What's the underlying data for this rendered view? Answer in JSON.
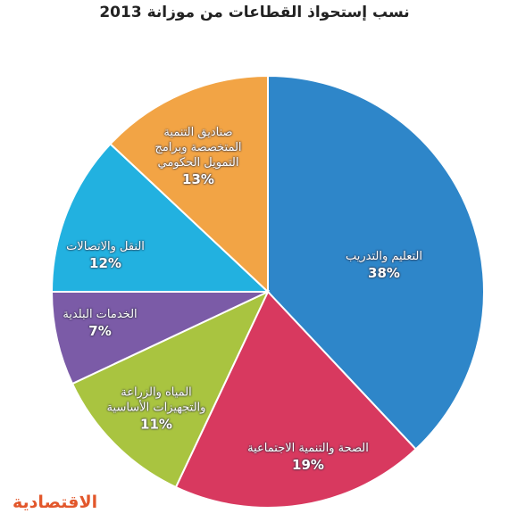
{
  "chart_data": {
    "type": "pie",
    "title": "نسب إستحواذ القطاعات من موزانة 2013",
    "categories": [
      "التعليم والتدريب",
      "الصحة والتنمية الاجتماعية",
      "المياه والزراعة\nوالتجهيزات الأساسية",
      "الخدمات البلدية",
      "النقل والاتصالات",
      "صناديق التنمية\nالمتخصصة وبرامج\nالتمويل الحكومي"
    ],
    "values": [
      38,
      19,
      11,
      7,
      12,
      13
    ],
    "value_labels": [
      "38%",
      "19%",
      "11%",
      "7%",
      "12%",
      "13%"
    ],
    "colors": [
      "#2e86c9",
      "#d8395f",
      "#a9c440",
      "#7b5ba7",
      "#22b1e0",
      "#f2a445"
    ]
  },
  "logo": "الاقتصادية"
}
